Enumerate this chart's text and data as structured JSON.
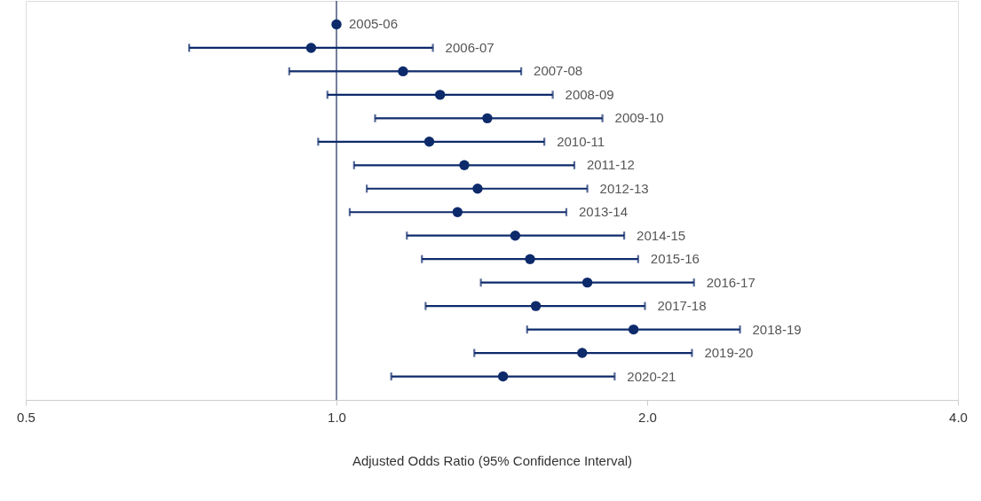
{
  "chart_data": {
    "type": "scatter",
    "orientation": "horizontal",
    "log": "x",
    "xlabel": "Adjusted Odds Ratio (95% Confidence Interval)",
    "categories": [
      "2005-06",
      "2006-07",
      "2007-08",
      "2008-09",
      "2009-10",
      "2010-11",
      "2011-12",
      "2012-13",
      "2013-14",
      "2014-15",
      "2015-16",
      "2016-17",
      "2017-18",
      "2018-19",
      "2019-20",
      "2020-21"
    ],
    "values": [
      1.0,
      0.945,
      1.16,
      1.26,
      1.4,
      1.23,
      1.33,
      1.37,
      1.31,
      1.49,
      1.54,
      1.75,
      1.56,
      1.94,
      1.73,
      1.45
    ],
    "errors": [
      null,
      [
        0.72,
        1.24
      ],
      [
        0.9,
        1.51
      ],
      [
        0.98,
        1.62
      ],
      [
        1.09,
        1.81
      ],
      [
        0.96,
        1.59
      ],
      [
        1.04,
        1.7
      ],
      [
        1.07,
        1.75
      ],
      [
        1.03,
        1.67
      ],
      [
        1.17,
        1.9
      ],
      [
        1.21,
        1.96
      ],
      [
        1.38,
        2.22
      ],
      [
        1.22,
        1.99
      ],
      [
        1.53,
        2.46
      ],
      [
        1.36,
        2.21
      ],
      [
        1.13,
        1.86
      ]
    ],
    "color": "#0d2a6b",
    "marker": "circle",
    "xlim": [
      0.5,
      4.0
    ],
    "xticks": [
      0.5,
      {
        "value": 1,
        "label": "1.0"
      },
      {
        "value": 2,
        "label": "2.0"
      },
      {
        "value": 4,
        "label": "4.0"
      }
    ],
    "ref_lines": [
      {
        "axis": "x",
        "value": 1.0,
        "label": null,
        "color": "#1a2a5a"
      }
    ],
    "tick_labels": "x",
    "grid": false
  }
}
